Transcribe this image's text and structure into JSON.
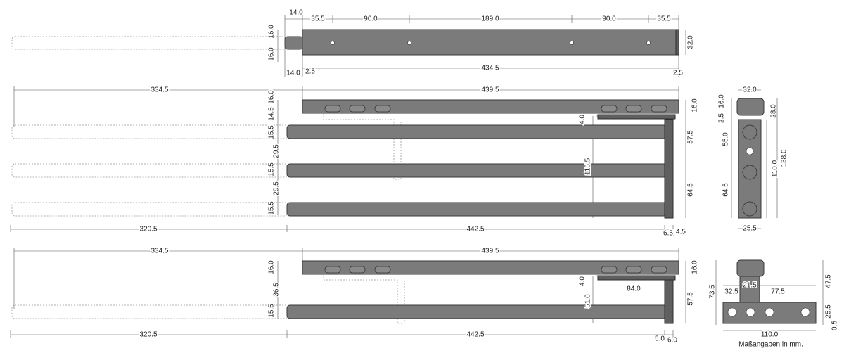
{
  "top_view": {
    "dimensions": [
      "14.0",
      "35.5",
      "90.0",
      "189.0",
      "90.0",
      "35.5",
      "16.0",
      "16.0",
      "32.0",
      "14.0",
      "2.5",
      "434.5",
      "2.5"
    ]
  },
  "triple_view": {
    "dimensions": [
      "334.5",
      "439.5",
      "16.0",
      "14.5",
      "15.5",
      "29.5",
      "15.5",
      "29.5",
      "15.5",
      "4.0",
      "115.5",
      "16.0",
      "57.5",
      "64.5",
      "320.5",
      "442.5",
      "6.5",
      "4.5"
    ]
  },
  "single_view": {
    "dimensions": [
      "334.5",
      "439.5",
      "16.0",
      "36.5",
      "15.5",
      "4.0",
      "84.0",
      "51.0",
      "16.0",
      "57.5",
      "320.5",
      "442.5",
      "5.0",
      "6.0"
    ]
  },
  "side_view": {
    "dimensions": [
      "32.0",
      "16.0",
      "2.5",
      "28.0",
      "55.0",
      "110.0",
      "138.0",
      "64.5",
      "25.5"
    ]
  },
  "bracket_view": {
    "dimensions": [
      "73.5",
      "21.5",
      "32.5",
      "77.5",
      "47.5",
      "25.5",
      "0.5",
      "110.0"
    ]
  },
  "note": "Maßangaben in mm."
}
